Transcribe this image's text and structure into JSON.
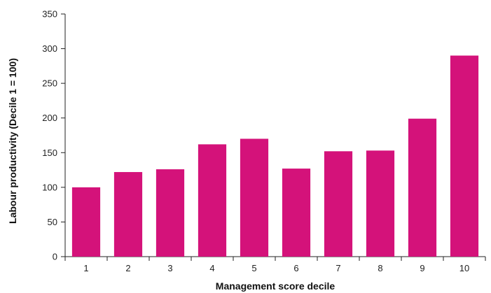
{
  "chart_data": {
    "type": "bar",
    "title": "",
    "xlabel": "Management score decile",
    "ylabel": "Labour productivity (Decile 1 = 100)",
    "categories": [
      "1",
      "2",
      "3",
      "4",
      "5",
      "6",
      "7",
      "8",
      "9",
      "10"
    ],
    "values": [
      100,
      122,
      126,
      162,
      170,
      127,
      152,
      153,
      199,
      290
    ],
    "ylim": [
      0,
      350
    ],
    "yticks": [
      0,
      50,
      100,
      150,
      200,
      250,
      300,
      350
    ],
    "grid": false,
    "legend": "none",
    "bar_color": "#d4127a",
    "axis_color": "#222222"
  }
}
